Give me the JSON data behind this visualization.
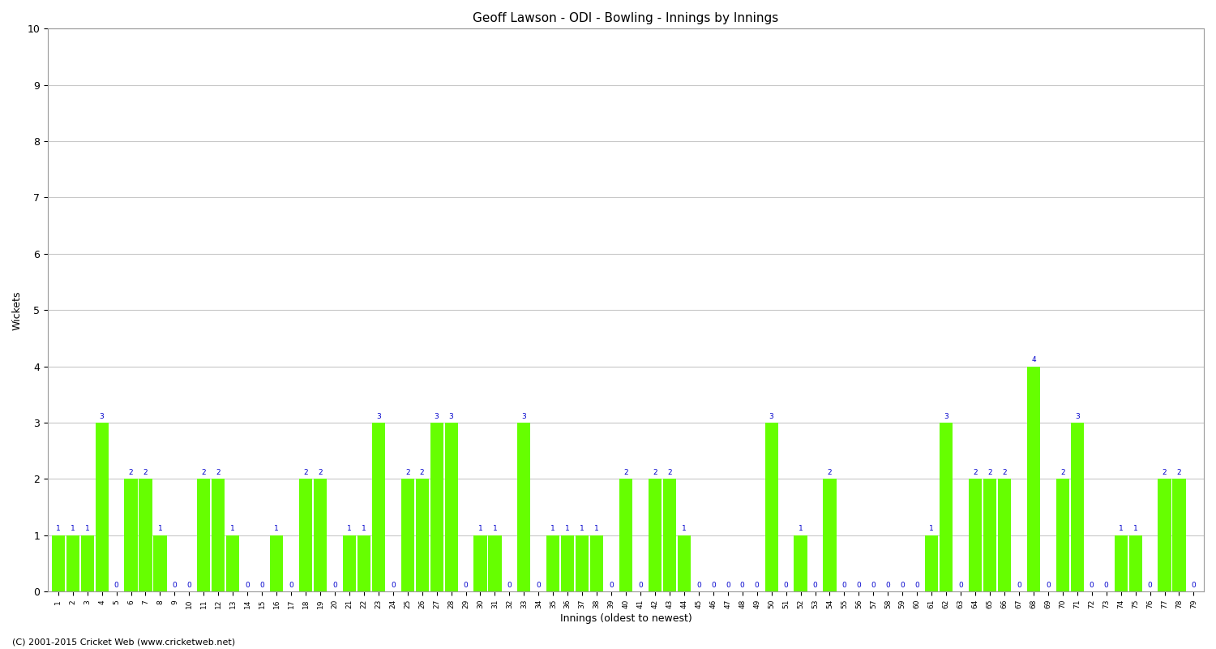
{
  "title": "Geoff Lawson - ODI - Bowling - Innings by Innings",
  "xlabel": "Innings (oldest to newest)",
  "ylabel": "Wickets",
  "ylim": [
    0,
    10
  ],
  "yticks": [
    0,
    1,
    2,
    3,
    4,
    5,
    6,
    7,
    8,
    9,
    10
  ],
  "bar_color": "#66ff00",
  "label_color": "#0000cc",
  "background_color": "#ffffff",
  "grid_color": "#c8c8c8",
  "footer": "(C) 2001-2015 Cricket Web (www.cricketweb.net)",
  "innings_labels": [
    "1",
    "2",
    "3",
    "4",
    "5",
    "6",
    "7",
    "8",
    "9",
    "10",
    "11",
    "12",
    "13",
    "14",
    "15",
    "16",
    "17",
    "18",
    "19",
    "20",
    "21",
    "22",
    "23",
    "24",
    "25",
    "26",
    "27",
    "28",
    "29",
    "30",
    "31",
    "32",
    "33",
    "34",
    "35",
    "36",
    "37",
    "38",
    "39",
    "40",
    "41",
    "42",
    "43",
    "44",
    "45",
    "46",
    "47",
    "48",
    "49",
    "50",
    "51",
    "52",
    "53",
    "54",
    "55",
    "56",
    "57",
    "58",
    "59",
    "60",
    "61",
    "62",
    "63",
    "64",
    "65",
    "66",
    "67",
    "68",
    "69",
    "70",
    "71",
    "72",
    "73",
    "74",
    "75",
    "76",
    "77",
    "78",
    "79"
  ],
  "wickets": [
    1,
    1,
    1,
    3,
    0,
    2,
    2,
    1,
    0,
    0,
    2,
    2,
    1,
    0,
    0,
    1,
    0,
    2,
    2,
    0,
    1,
    1,
    3,
    0,
    2,
    2,
    3,
    3,
    0,
    1,
    1,
    0,
    3,
    0,
    1,
    1,
    1,
    1,
    0,
    2,
    0,
    2,
    2,
    1,
    0,
    0,
    0,
    0,
    0,
    3,
    0,
    1,
    0,
    2,
    0,
    0,
    0,
    0,
    0,
    0,
    1,
    3,
    0,
    2,
    2,
    2,
    0,
    4,
    0,
    2,
    3,
    0,
    0,
    1,
    1,
    0,
    2,
    2,
    0
  ]
}
